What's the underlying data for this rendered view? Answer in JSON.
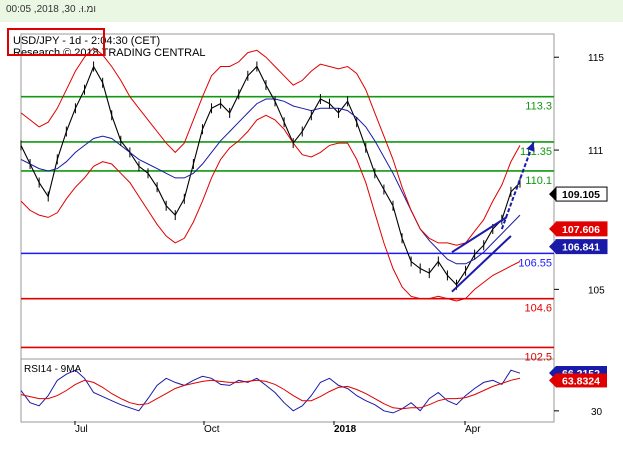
{
  "header": {
    "datetime": "ומ.וּ. 30, 2018, 00:05",
    "chart_title": "USD/JPY - 1d - 2:04:30 (CET)",
    "source": "Research © 2018 TRADING CENTRAL"
  },
  "chart_data": [
    {
      "type": "line",
      "title": "USD/JPY - 1d - 2:04:30 (CET)",
      "x_ticks": [
        "Jul",
        "Oct",
        "2018",
        "Apr"
      ],
      "y_ticks": [
        "115",
        "111",
        "109",
        "105"
      ],
      "ylim": [
        102,
        116
      ],
      "grid": false,
      "series": [
        {
          "role": "price",
          "color": "#000000",
          "values": [
            111.2,
            110.4,
            109.6,
            109.0,
            110.6,
            111.8,
            112.8,
            113.6,
            114.6,
            113.9,
            112.5,
            111.4,
            110.9,
            110.3,
            110.0,
            109.4,
            108.6,
            108.2,
            108.9,
            110.4,
            111.9,
            112.8,
            113.0,
            112.6,
            113.4,
            114.2,
            114.6,
            113.8,
            113.1,
            112.2,
            111.3,
            111.8,
            112.5,
            113.2,
            113.0,
            112.6,
            113.1,
            112.2,
            111.1,
            110.0,
            109.3,
            108.6,
            107.2,
            106.2,
            105.9,
            105.7,
            106.2,
            105.6,
            105.2,
            105.8,
            106.5,
            106.9,
            107.6,
            108.0,
            109.2,
            109.6
          ]
        },
        {
          "role": "moving-average",
          "color": "#1a1aa8",
          "values": [
            110.6,
            110.4,
            110.2,
            110.1,
            110.2,
            110.5,
            110.9,
            111.2,
            111.5,
            111.6,
            111.5,
            111.2,
            110.9,
            110.6,
            110.4,
            110.2,
            110.0,
            109.8,
            109.8,
            110.0,
            110.4,
            110.9,
            111.4,
            111.8,
            112.2,
            112.6,
            113.0,
            113.2,
            113.2,
            113.1,
            112.9,
            112.8,
            112.7,
            112.8,
            112.8,
            112.8,
            112.7,
            112.4,
            112.0,
            111.4,
            110.7,
            110.0,
            109.2,
            108.4,
            107.6,
            107.1,
            106.7,
            106.3,
            106.1,
            106.1,
            106.3,
            106.6,
            107.0,
            107.4,
            107.8,
            108.2
          ]
        },
        {
          "role": "bollinger-upper",
          "color": "#e00000",
          "values": [
            112.6,
            112.3,
            112.0,
            112.2,
            112.8,
            113.6,
            114.4,
            115.0,
            115.4,
            115.1,
            114.6,
            114.0,
            113.3,
            112.8,
            112.3,
            111.8,
            111.3,
            110.9,
            111.3,
            112.3,
            113.3,
            114.2,
            114.6,
            114.6,
            114.8,
            115.2,
            115.3,
            115.0,
            114.6,
            114.2,
            113.8,
            114.0,
            114.4,
            114.7,
            114.6,
            114.5,
            114.6,
            114.3,
            113.6,
            112.6,
            111.6,
            110.6,
            109.4,
            108.4,
            107.6,
            107.2,
            107.0,
            107.0,
            106.9,
            107.0,
            107.5,
            108.0,
            108.8,
            109.5,
            110.5,
            111.2
          ]
        },
        {
          "role": "bollinger-lower",
          "color": "#e00000",
          "values": [
            108.8,
            108.4,
            108.2,
            108.1,
            108.3,
            108.9,
            109.4,
            109.8,
            110.3,
            110.5,
            110.4,
            110.0,
            109.6,
            109.0,
            108.4,
            107.8,
            107.3,
            107.0,
            107.2,
            107.9,
            108.8,
            109.8,
            110.6,
            111.1,
            111.4,
            111.8,
            112.3,
            112.5,
            112.3,
            111.9,
            111.3,
            110.8,
            110.7,
            110.9,
            111.2,
            111.3,
            111.3,
            110.6,
            109.6,
            108.3,
            107.0,
            105.9,
            105.1,
            104.7,
            104.6,
            104.6,
            104.7,
            104.6,
            104.5,
            104.6,
            105.0,
            105.3,
            105.6,
            105.8,
            106.0,
            106.2
          ]
        }
      ],
      "levels": [
        {
          "value": 113.3,
          "label": "113.3",
          "color": "#119911"
        },
        {
          "value": 111.35,
          "label": "111.35",
          "color": "#119911"
        },
        {
          "value": 110.1,
          "label": "110.1",
          "color": "#119911"
        },
        {
          "value": 106.55,
          "label": "106.55",
          "color": "#1a1aff"
        },
        {
          "value": 104.6,
          "label": "104.6",
          "color": "#e00000"
        },
        {
          "value": 102.5,
          "label": "102.5",
          "color": "#e00000"
        }
      ],
      "price_tags": [
        {
          "value": 109.105,
          "label": "109.105",
          "bg": "#ffffff",
          "fg": "#000000"
        },
        {
          "value": 107.606,
          "label": "107.606",
          "bg": "#e00000",
          "fg": "#ffffff"
        },
        {
          "value": 106.841,
          "label": "106.841",
          "bg": "#1a1aa8",
          "fg": "#ffffff"
        }
      ],
      "trend_arrow": {
        "from": [
          107.6,
          53
        ],
        "to": [
          111.35,
          56.5
        ],
        "color": "#1a1aa8"
      },
      "channel": {
        "lower": [
          [
            104.9,
            47.5
          ],
          [
            107.3,
            54
          ]
        ],
        "upper": [
          [
            106.6,
            47.5
          ],
          [
            108.1,
            53.5
          ]
        ],
        "color": "#1a1aa8"
      }
    },
    {
      "type": "line",
      "title": "RSI14 - 9MA",
      "y_ticks": [
        "30"
      ],
      "ylim": [
        20,
        80
      ],
      "series": [
        {
          "role": "rsi",
          "color": "#1a1aa8",
          "values": [
            50,
            38,
            35,
            45,
            60,
            66,
            70,
            62,
            48,
            44,
            40,
            36,
            33,
            30,
            42,
            55,
            62,
            58,
            55,
            60,
            64,
            62,
            56,
            55,
            60,
            58,
            62,
            55,
            48,
            38,
            30,
            35,
            45,
            58,
            62,
            55,
            52,
            45,
            40,
            36,
            30,
            28,
            32,
            38,
            30,
            42,
            48,
            40,
            36,
            45,
            52,
            58,
            60,
            56,
            70,
            67
          ]
        },
        {
          "role": "ma",
          "color": "#e00000",
          "values": [
            46,
            44,
            42,
            42,
            45,
            50,
            56,
            60,
            58,
            53,
            47,
            42,
            38,
            36,
            37,
            42,
            47,
            52,
            55,
            57,
            59,
            60,
            59,
            58,
            58,
            59,
            60,
            59,
            56,
            51,
            45,
            40,
            40,
            44,
            49,
            53,
            54,
            51,
            47,
            42,
            37,
            33,
            32,
            33,
            33,
            36,
            40,
            42,
            42,
            43,
            46,
            50,
            54,
            57,
            60,
            62
          ]
        }
      ],
      "value_tags": [
        {
          "value": 66.2152,
          "label": "66.2152",
          "bg": "#1a1aa8",
          "fg": "#ffffff"
        },
        {
          "value": 63.8324,
          "label": "63.8324",
          "bg": "#e00000",
          "fg": "#ffffff"
        }
      ]
    }
  ]
}
